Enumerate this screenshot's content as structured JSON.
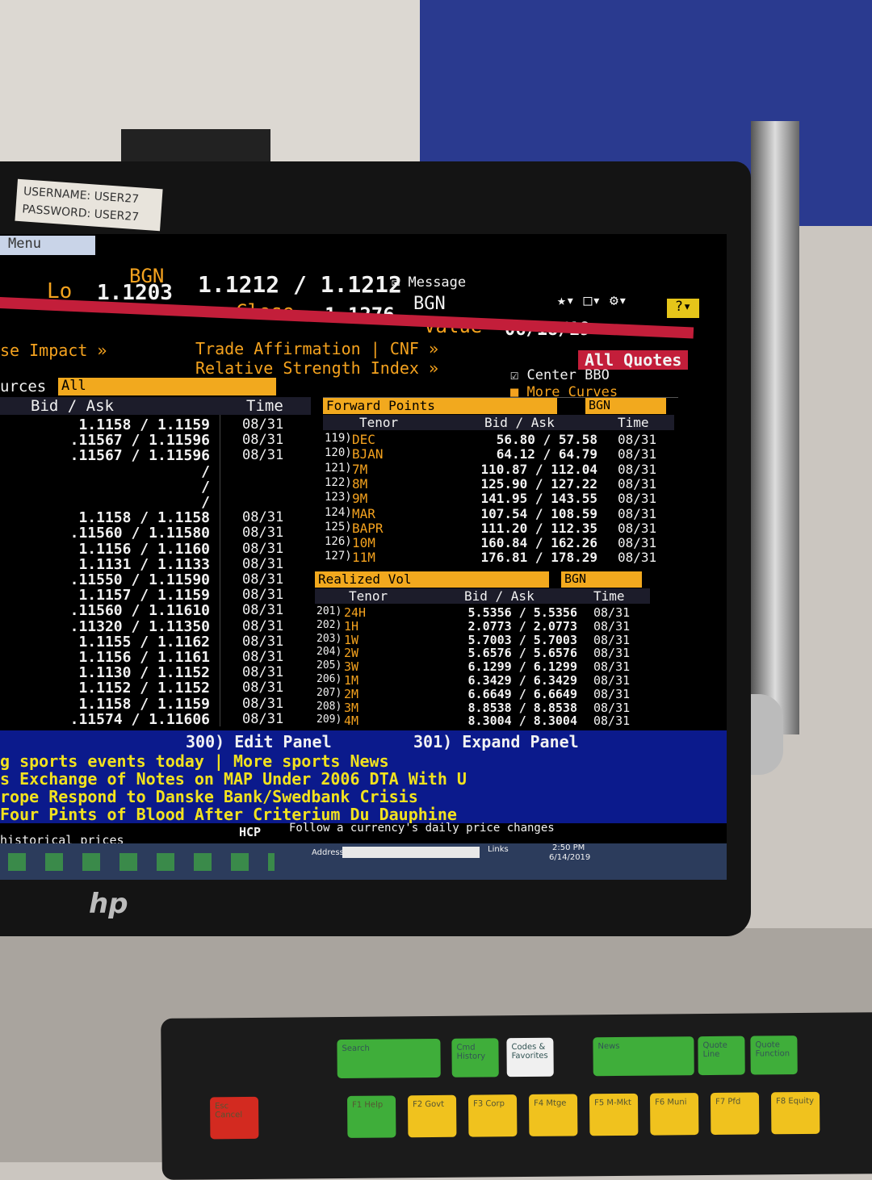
{
  "sticker": [
    "USERNAME: USER27",
    "PASSWORD: USER27"
  ],
  "menu": "Menu",
  "header": {
    "source": "BGN",
    "quote": "1.1212 / 1.1212",
    "lo_label": "Lo",
    "lo": "1.1203",
    "close_label": "Close",
    "close": "1.1276",
    "value_label": "Value",
    "value_date": "06/18/19",
    "message": "Message",
    "source2": "BGN"
  },
  "links": [
    "se Impact »",
    "Trade Affirmation | CNF »",
    "Relative Strength Index »",
    "All Quotes"
  ],
  "options": [
    "Center BBO",
    "More Curves"
  ],
  "left_panel": {
    "sources_label": "urces",
    "sources_value": "All",
    "columns": [
      "Bid / Ask",
      "Time"
    ],
    "rows": [
      {
        "bid_ask": "1.1158 / 1.1159",
        "time": "08/31"
      },
      {
        "bid_ask": ".11567 / 1.11596",
        "time": "08/31"
      },
      {
        "bid_ask": ".11567 / 1.11596",
        "time": "08/31"
      },
      {
        "bid_ask": "/"
      },
      {
        "bid_ask": "/"
      },
      {
        "bid_ask": "/"
      },
      {
        "bid_ask": "1.1158 / 1.1158",
        "time": "08/31"
      },
      {
        "bid_ask": ".11560 / 1.11580",
        "time": "08/31"
      },
      {
        "bid_ask": "1.1156 / 1.1160",
        "time": "08/31"
      },
      {
        "bid_ask": "1.1131 / 1.1133",
        "time": "08/31"
      },
      {
        "bid_ask": ".11550 / 1.11590",
        "time": "08/31"
      },
      {
        "bid_ask": "1.1157 / 1.1159",
        "time": "08/31"
      },
      {
        "bid_ask": ".11560 / 1.11610",
        "time": "08/31"
      },
      {
        "bid_ask": ".11320 / 1.11350",
        "time": "08/31"
      },
      {
        "bid_ask": "1.1155 / 1.1162",
        "time": "08/31"
      },
      {
        "bid_ask": "1.1156 / 1.1161",
        "time": "08/31"
      },
      {
        "bid_ask": "1.1130 / 1.1152",
        "time": "08/31"
      },
      {
        "bid_ask": "1.1152 / 1.1152",
        "time": "08/31"
      },
      {
        "bid_ask": "1.1158 / 1.1159",
        "time": "08/31"
      },
      {
        "bid_ask": ".11574 / 1.11606",
        "time": "08/31"
      }
    ]
  },
  "forward_points": {
    "title": "Forward Points",
    "source": "BGN",
    "columns": [
      "Tenor",
      "Bid / Ask",
      "Time"
    ],
    "rows": [
      {
        "num": "119)",
        "tenor": "DEC",
        "bid_ask": "56.80 / 57.58",
        "time": "08/31"
      },
      {
        "num": "120)",
        "tenor": "BJAN",
        "bid_ask": "64.12 / 64.79",
        "time": "08/31"
      },
      {
        "num": "121)",
        "tenor": "7M",
        "bid_ask": "110.87 / 112.04",
        "time": "08/31"
      },
      {
        "num": "122)",
        "tenor": "8M",
        "bid_ask": "125.90 / 127.22",
        "time": "08/31"
      },
      {
        "num": "123)",
        "tenor": "9M",
        "bid_ask": "141.95 / 143.55",
        "time": "08/31"
      },
      {
        "num": "124)",
        "tenor": "MAR",
        "bid_ask": "107.54 / 108.59",
        "time": "08/31"
      },
      {
        "num": "125)",
        "tenor": "BAPR",
        "bid_ask": "111.20 / 112.35",
        "time": "08/31"
      },
      {
        "num": "126)",
        "tenor": "10M",
        "bid_ask": "160.84 / 162.26",
        "time": "08/31"
      },
      {
        "num": "127)",
        "tenor": "11M",
        "bid_ask": "176.81 / 178.29",
        "time": "08/31"
      }
    ]
  },
  "realized_vol": {
    "title": "Realized Vol",
    "source": "BGN",
    "columns": [
      "Tenor",
      "Bid / Ask",
      "Time"
    ],
    "rows": [
      {
        "num": "201)",
        "tenor": "24H",
        "bid_ask": "5.5356 / 5.5356",
        "time": "08/31"
      },
      {
        "num": "202)",
        "tenor": "1H",
        "bid_ask": "2.0773 / 2.0773",
        "time": "08/31"
      },
      {
        "num": "203)",
        "tenor": "1W",
        "bid_ask": "5.7003 / 5.7003",
        "time": "08/31"
      },
      {
        "num": "204)",
        "tenor": "2W",
        "bid_ask": "5.6576 / 5.6576",
        "time": "08/31"
      },
      {
        "num": "205)",
        "tenor": "3W",
        "bid_ask": "6.1299 / 6.1299",
        "time": "08/31"
      },
      {
        "num": "206)",
        "tenor": "1M",
        "bid_ask": "6.3429 / 6.3429",
        "time": "08/31"
      },
      {
        "num": "207)",
        "tenor": "2M",
        "bid_ask": "6.6649 / 6.6649",
        "time": "08/31"
      },
      {
        "num": "208)",
        "tenor": "3M",
        "bid_ask": "8.8538 / 8.8538",
        "time": "08/31"
      },
      {
        "num": "209)",
        "tenor": "4M",
        "bid_ask": "8.3004 / 8.3004",
        "time": "08/31"
      }
    ]
  },
  "panel_actions": [
    "300) Edit Panel",
    "301) Expand Panel"
  ],
  "news": [
    "g sports events today | More sports News",
    "s Exchange of Notes on MAP Under 2006 DTA With U",
    "rope Respond to Danske Bank/Swedbank Crisis",
    "Four Pints of Blood After Criterium Du Dauphine"
  ],
  "status": {
    "left": "historical prices",
    "code": "HCP",
    "hint": "Follow a currency's daily price changes"
  },
  "taskbar": {
    "address": "Address",
    "links": "Links",
    "time": "2:50 PM",
    "date": "6/14/2019"
  },
  "brand": "hp",
  "keyboard": {
    "top_row": [
      "Search",
      "Cmd History",
      "Codes & Favorites",
      "News",
      "Quote Line",
      "Quote Function"
    ],
    "bottom_row": [
      "Esc Cancel",
      "F1 Help",
      "F2 Govt",
      "F3 Corp",
      "F4 Mtge",
      "F5 M-Mkt",
      "F6 Muni",
      "F7 Pfd",
      "F8 Equity"
    ]
  }
}
